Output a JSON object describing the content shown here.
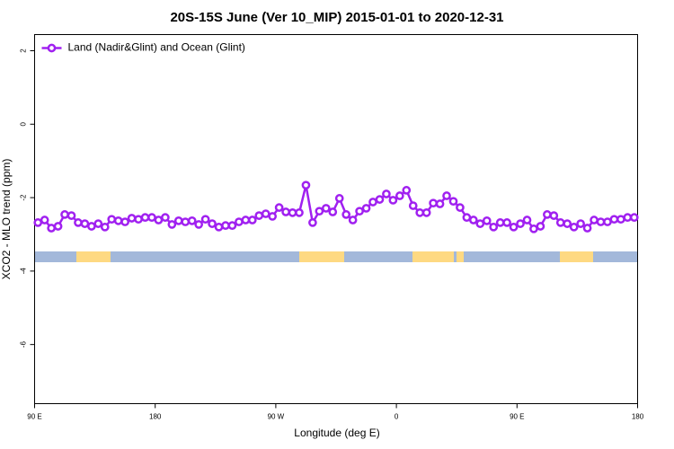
{
  "chart_data": {
    "type": "line",
    "title": "20S-15S June (Ver 10_MIP)   2015-01-01 to 2020-12-31",
    "x_label": "Longitude (deg E)",
    "y_label": "XCO2 - MLO trend (ppm)",
    "xlim": [
      90,
      540
    ],
    "ylim": [
      -7.61,
      2.44
    ],
    "xticks": [
      {
        "value": 90,
        "label": "90 E"
      },
      {
        "value": 180,
        "label": "180"
      },
      {
        "value": 270,
        "label": "90 W"
      },
      {
        "value": 360,
        "label": "0"
      },
      {
        "value": 450,
        "label": "90 E"
      },
      {
        "value": 540,
        "label": "180"
      }
    ],
    "yticks": [
      2,
      0,
      -2,
      -4,
      -6
    ],
    "legend": "top-left",
    "x": [
      92.5,
      97.5,
      102.5,
      107.5,
      112.5,
      117.5,
      122.5,
      127.5,
      132.5,
      137.5,
      142.5,
      147.5,
      152.5,
      157.5,
      162.5,
      167.5,
      172.5,
      177.5,
      182.5,
      187.5,
      192.5,
      197.5,
      202.5,
      207.5,
      212.5,
      217.5,
      222.5,
      227.5,
      232.5,
      237.5,
      242.5,
      247.5,
      252.5,
      257.5,
      262.5,
      267.5,
      272.5,
      277.5,
      282.5,
      287.5,
      292.5,
      297.5,
      302.5,
      307.5,
      312.5,
      317.5,
      322.5,
      327.5,
      332.5,
      337.5,
      342.5,
      347.5,
      352.5,
      357.5,
      362.5,
      367.5,
      372.5,
      377.5,
      382.5,
      387.5,
      392.5,
      397.5,
      402.5,
      407.5,
      412.5,
      417.5,
      422.5,
      427.5,
      432.5,
      437.5,
      442.5,
      447.5,
      452.5,
      457.5,
      462.5,
      467.5,
      472.5,
      477.5,
      482.5,
      487.5,
      492.5,
      497.5,
      502.5,
      507.5,
      512.5,
      517.5,
      522.5,
      527.5,
      532.5,
      537.5
    ],
    "series": [
      {
        "name": "Land (Nadir&Glint) and Ocean (Glint)",
        "color": "#a020f0",
        "values": [
          -2.68,
          -2.61,
          -2.83,
          -2.78,
          -2.46,
          -2.49,
          -2.68,
          -2.71,
          -2.78,
          -2.71,
          -2.8,
          -2.59,
          -2.63,
          -2.66,
          -2.56,
          -2.59,
          -2.54,
          -2.54,
          -2.61,
          -2.54,
          -2.73,
          -2.63,
          -2.66,
          -2.63,
          -2.73,
          -2.59,
          -2.71,
          -2.8,
          -2.76,
          -2.76,
          -2.66,
          -2.61,
          -2.61,
          -2.49,
          -2.44,
          -2.51,
          -2.27,
          -2.39,
          -2.41,
          -2.41,
          -1.66,
          -2.68,
          -2.37,
          -2.29,
          -2.39,
          -2.02,
          -2.46,
          -2.61,
          -2.37,
          -2.29,
          -2.12,
          -2.05,
          -1.9,
          -2.07,
          -1.95,
          -1.8,
          -2.22,
          -2.41,
          -2.41,
          -2.15,
          -2.17,
          -1.95,
          -2.1,
          -2.27,
          -2.54,
          -2.61,
          -2.71,
          -2.63,
          -2.8,
          -2.68,
          -2.68,
          -2.8,
          -2.71,
          -2.61,
          -2.85,
          -2.78,
          -2.46,
          -2.49,
          -2.68,
          -2.71,
          -2.8,
          -2.71,
          -2.83,
          -2.61,
          -2.66,
          -2.66,
          -2.59,
          -2.59,
          -2.54,
          -2.54
        ]
      }
    ]
  }
}
